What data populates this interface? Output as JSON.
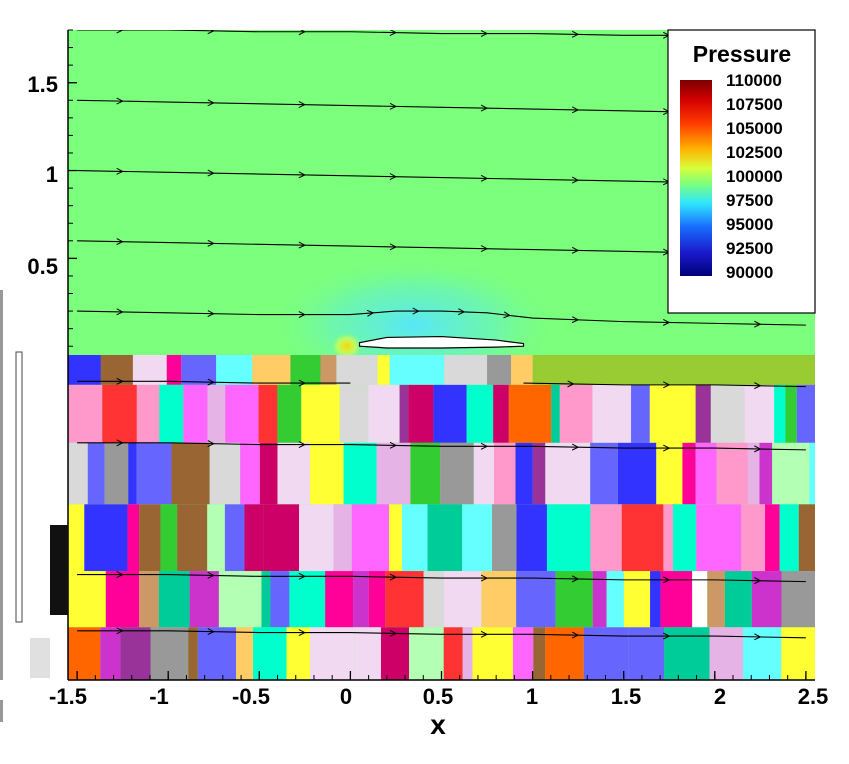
{
  "chart_data": {
    "type": "heatmap",
    "title": "",
    "xlabel": "x",
    "ylabel": "",
    "xlim": [
      -1.55,
      2.55
    ],
    "ylim": [
      -1.9,
      1.8
    ],
    "x_ticks": [
      -1.5,
      -1,
      -0.5,
      0,
      0.5,
      1,
      1.5,
      2,
      2.5
    ],
    "x_tick_labels": [
      "-1.5",
      "-1",
      "-0.5",
      "0",
      "0.5",
      "1",
      "1.5",
      "2",
      "2.5"
    ],
    "y_ticks": [
      0.5,
      1,
      1.5
    ],
    "y_tick_labels": [
      "0.5",
      "1",
      "1.5"
    ],
    "grid": false,
    "legend": {
      "title": "Pressure",
      "placement": "top-right",
      "levels": [
        110000,
        107500,
        105000,
        102500,
        100000,
        97500,
        95000,
        92500,
        90000
      ],
      "labels": [
        "110000",
        "107500",
        "105000",
        "102500",
        "100000",
        "97500",
        "95000",
        "92500",
        "90000"
      ],
      "colors": [
        "#7a0000",
        "#d40000",
        "#ff3a00",
        "#ffb000",
        "#d8ff3a",
        "#7cff7c",
        "#2fe6ff",
        "#1a6cff",
        "#1a1acc",
        "#00007a"
      ]
    },
    "background_value": 100000,
    "series": [
      {
        "name": "",
        "kind": "streamline",
        "x": [
          -1.5,
          -1.0,
          -0.5,
          0.0,
          0.5,
          1.0,
          1.5,
          2.0,
          2.5
        ],
        "y": [
          1.8,
          1.8,
          1.79,
          1.79,
          1.78,
          1.78,
          1.77,
          1.77,
          1.76
        ]
      },
      {
        "name": "",
        "kind": "streamline",
        "x": [
          -1.5,
          -1.0,
          -0.5,
          0.0,
          0.5,
          1.0,
          1.5,
          2.0,
          2.5
        ],
        "y": [
          1.4,
          1.39,
          1.38,
          1.37,
          1.36,
          1.35,
          1.34,
          1.33,
          1.32
        ]
      },
      {
        "name": "",
        "kind": "streamline",
        "x": [
          -1.5,
          -1.0,
          -0.5,
          0.0,
          0.5,
          1.0,
          1.5,
          2.0,
          2.5
        ],
        "y": [
          1.0,
          0.99,
          0.98,
          0.97,
          0.96,
          0.95,
          0.94,
          0.93,
          0.92
        ]
      },
      {
        "name": "",
        "kind": "streamline",
        "x": [
          -1.5,
          -1.0,
          -0.5,
          0.0,
          0.5,
          1.0,
          1.5,
          2.0,
          2.5
        ],
        "y": [
          0.6,
          0.59,
          0.58,
          0.57,
          0.56,
          0.55,
          0.54,
          0.53,
          0.52
        ]
      },
      {
        "name": "",
        "kind": "streamline",
        "x": [
          -1.5,
          -1.0,
          -0.5,
          0.0,
          0.25,
          0.5,
          0.75,
          1.0,
          1.5,
          2.0,
          2.5
        ],
        "y": [
          0.2,
          0.19,
          0.18,
          0.18,
          0.2,
          0.2,
          0.19,
          0.16,
          0.14,
          0.13,
          0.12
        ]
      },
      {
        "name": "",
        "kind": "streamline",
        "x": [
          -1.5,
          -1.0,
          -0.5,
          0.0
        ],
        "y": [
          -0.2,
          -0.2,
          -0.21,
          -0.21
        ]
      },
      {
        "name": "",
        "kind": "streamline",
        "x": [
          0.95,
          1.5,
          2.0,
          2.5
        ],
        "y": [
          -0.21,
          -0.22,
          -0.22,
          -0.23
        ]
      },
      {
        "name": "",
        "kind": "streamline",
        "x": [
          -1.5,
          -1.0,
          -0.5,
          0.0,
          0.5,
          1.0,
          1.5,
          2.0,
          2.5
        ],
        "y": [
          -0.55,
          -0.55,
          -0.56,
          -0.56,
          -0.57,
          -0.57,
          -0.58,
          -0.58,
          -0.59
        ]
      },
      {
        "name": "",
        "kind": "streamline",
        "x": [
          -1.5,
          -1.0,
          -0.5,
          0.0,
          0.5,
          1.0,
          1.5,
          2.0,
          2.5
        ],
        "y": [
          -1.3,
          -1.3,
          -1.31,
          -1.31,
          -1.32,
          -1.32,
          -1.33,
          -1.33,
          -1.34
        ]
      },
      {
        "name": "",
        "kind": "streamline",
        "x": [
          -1.5,
          -1.0,
          -0.5,
          0.0,
          0.5,
          1.0,
          1.5,
          2.0,
          2.5
        ],
        "y": [
          -1.62,
          -1.62,
          -1.63,
          -1.63,
          -1.64,
          -1.64,
          -1.65,
          -1.65,
          -1.66
        ]
      }
    ],
    "body": {
      "name": "",
      "kind": "airfoil",
      "x": [
        0.05,
        0.2,
        0.5,
        0.8,
        0.95
      ],
      "y_upper": [
        0.02,
        0.05,
        0.055,
        0.035,
        0.015
      ],
      "y_lower": [
        0.0,
        -0.01,
        -0.01,
        -0.005,
        0.0
      ]
    },
    "pressure_field": [
      {
        "x": -0.02,
        "y": 0.0,
        "value": 104500
      },
      {
        "x": 0.02,
        "y": 0.04,
        "value": 96500
      },
      {
        "x": 0.35,
        "y": 0.12,
        "value": 98500
      },
      {
        "x": 0.5,
        "y": 0.35,
        "value": 99000
      },
      {
        "x": 0.9,
        "y": 0.03,
        "value": 101000
      }
    ]
  }
}
